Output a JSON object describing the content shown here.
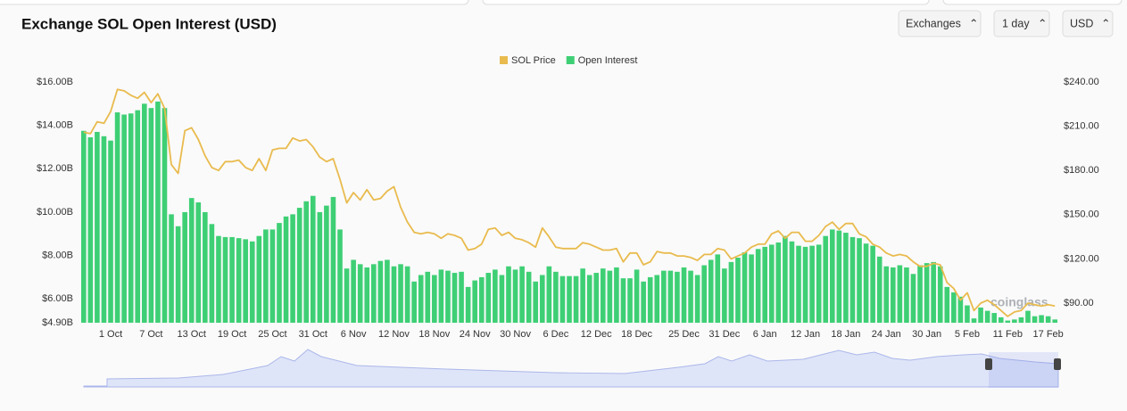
{
  "controls": [
    "Exchanges",
    "1 day",
    "USD"
  ],
  "chart_data": {
    "type": "bar",
    "title": "Exchange SOL Open Interest (USD)",
    "watermark": "coinglass",
    "categories": [
      null,
      null,
      null,
      null,
      "1 Oct",
      null,
      null,
      null,
      null,
      null,
      "7 Oct",
      null,
      null,
      null,
      null,
      null,
      "13 Oct",
      null,
      null,
      null,
      null,
      null,
      "19 Oct",
      null,
      null,
      null,
      null,
      null,
      "25 Oct",
      null,
      null,
      null,
      null,
      null,
      "31 Oct",
      null,
      null,
      null,
      null,
      null,
      "6 Nov",
      null,
      null,
      null,
      null,
      null,
      "12 Nov",
      null,
      null,
      null,
      null,
      null,
      "18 Nov",
      null,
      null,
      null,
      null,
      null,
      "24 Nov",
      null,
      null,
      null,
      null,
      null,
      "30 Nov",
      null,
      null,
      null,
      null,
      null,
      "6 Dec",
      null,
      null,
      null,
      null,
      null,
      "12 Dec",
      null,
      null,
      null,
      null,
      null,
      "18 Dec",
      null,
      null,
      null,
      null,
      null,
      null,
      "25 Dec",
      null,
      null,
      null,
      null,
      null,
      "31 Dec",
      null,
      null,
      null,
      null,
      null,
      "6 Jan",
      null,
      null,
      null,
      null,
      null,
      "12 Jan",
      null,
      null,
      null,
      null,
      null,
      "18 Jan",
      null,
      null,
      null,
      null,
      null,
      "24 Jan",
      null,
      null,
      null,
      null,
      null,
      "30 Jan",
      null,
      null,
      null,
      null,
      null,
      "5 Feb",
      null,
      null,
      null,
      null,
      null,
      "11 Feb",
      null,
      null,
      null,
      null,
      null,
      "17 Feb",
      null
    ],
    "series": [
      {
        "name": "SOL Price",
        "type": "line",
        "axis": "y2",
        "color": "#e9bb4e",
        "values": [
          206,
          205,
          213,
          212,
          220,
          235,
          234,
          231,
          229,
          233,
          226,
          232,
          222,
          184,
          178,
          207,
          209,
          201,
          190,
          182,
          180,
          186,
          186,
          187,
          182,
          180,
          188,
          180,
          194,
          195,
          195,
          202,
          200,
          201,
          196,
          189,
          186,
          188,
          174,
          158,
          165,
          160,
          167,
          160,
          161,
          166,
          169,
          155,
          145,
          138,
          137,
          138,
          137,
          134,
          137,
          136,
          134,
          126,
          127,
          130,
          140,
          141,
          136,
          138,
          134,
          133,
          131,
          128,
          141,
          135,
          128,
          127,
          127,
          127,
          131,
          130,
          128,
          126,
          126,
          127,
          118,
          124,
          124,
          116,
          118,
          125,
          124,
          124,
          122,
          122,
          121,
          119,
          123,
          123,
          127,
          126,
          120,
          122,
          124,
          128,
          130,
          130,
          137,
          139,
          134,
          138,
          138,
          132,
          132,
          136,
          142,
          145,
          140,
          144,
          144,
          137,
          135,
          130,
          128,
          124,
          122,
          123,
          122,
          118,
          115,
          115,
          117,
          116,
          104,
          100,
          92,
          97,
          85,
          90,
          92,
          89,
          85,
          81,
          84,
          85,
          90,
          89,
          88,
          89,
          88
        ]
      },
      {
        "name": "Open Interest",
        "type": "bar",
        "color": "#3ecf75",
        "values": [
          13.75,
          13.45,
          13.7,
          13.5,
          13.3,
          14.6,
          14.5,
          14.55,
          14.7,
          15.0,
          14.8,
          15.1,
          14.8,
          9.9,
          9.35,
          10.0,
          10.65,
          10.45,
          10.0,
          9.45,
          8.9,
          8.85,
          8.85,
          8.8,
          8.75,
          8.65,
          8.9,
          9.2,
          9.2,
          9.5,
          9.8,
          9.9,
          10.2,
          10.5,
          10.75,
          10.0,
          10.3,
          10.7,
          9.2,
          7.4,
          7.8,
          7.6,
          7.45,
          7.6,
          7.75,
          7.8,
          7.5,
          7.6,
          7.5,
          6.8,
          7.1,
          7.25,
          7.1,
          7.35,
          7.3,
          7.2,
          7.25,
          6.55,
          6.85,
          7.0,
          7.2,
          7.35,
          7.1,
          7.5,
          7.35,
          7.5,
          7.25,
          6.8,
          7.1,
          7.5,
          7.25,
          7.05,
          7.05,
          7.05,
          7.4,
          7.1,
          7.2,
          7.4,
          7.3,
          7.45,
          6.95,
          6.95,
          7.35,
          6.8,
          7.0,
          7.1,
          7.3,
          7.3,
          7.25,
          7.45,
          7.3,
          7.1,
          7.55,
          7.8,
          8.05,
          7.4,
          7.7,
          7.9,
          8.15,
          8.05,
          8.3,
          8.4,
          8.5,
          8.6,
          8.9,
          8.65,
          8.45,
          8.4,
          8.45,
          8.5,
          8.9,
          9.2,
          9.15,
          9.05,
          8.85,
          8.8,
          8.55,
          8.45,
          7.95,
          7.5,
          7.45,
          7.55,
          7.45,
          7.15,
          7.55,
          7.65,
          7.7,
          7.5,
          6.55,
          6.3,
          6.1,
          5.7,
          5.1,
          5.6,
          5.45,
          5.35,
          5.15,
          5.0,
          5.05,
          5.15,
          5.45,
          5.2,
          5.25,
          5.2,
          5.05
        ]
      }
    ],
    "ylim": [
      4.9,
      16
    ],
    "yticks": [
      {
        "value": 4.9,
        "label": "$4.90B"
      },
      {
        "value": 6,
        "label": "$6.00B"
      },
      {
        "value": 8,
        "label": "$8.00B"
      },
      {
        "value": 10,
        "label": "$10.00B"
      },
      {
        "value": 12,
        "label": "$12.00B"
      },
      {
        "value": 14,
        "label": "$14.00B"
      },
      {
        "value": 16,
        "label": "$16.00B"
      }
    ],
    "y2lim": [
      76.7,
      240
    ],
    "y2ticks": [
      {
        "value": 90,
        "label": "$90.00"
      },
      {
        "value": 120,
        "label": "$120.00"
      },
      {
        "value": 150,
        "label": "$150.00"
      },
      {
        "value": 180,
        "label": "$180.00"
      },
      {
        "value": 210,
        "label": "$210.00"
      },
      {
        "value": 240,
        "label": "$240.00"
      }
    ]
  }
}
